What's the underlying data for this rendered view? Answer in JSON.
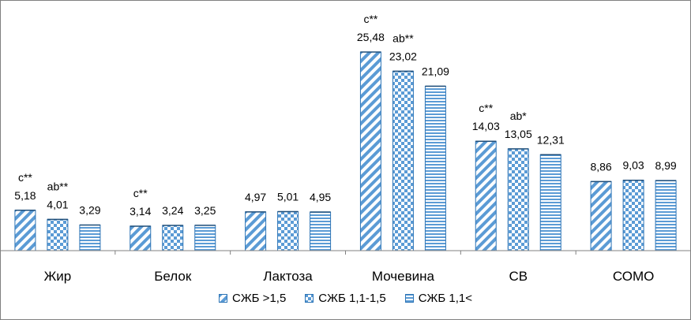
{
  "chart_data": {
    "type": "bar",
    "categories": [
      "Жир",
      "Белок",
      "Лактоза",
      "Мочевина",
      "СВ",
      "СОМО"
    ],
    "series": [
      {
        "name": "СЖБ >1,5",
        "values": [
          5.18,
          3.14,
          4.97,
          25.48,
          14.03,
          8.86
        ],
        "value_labels": [
          "5,18",
          "3,14",
          "4,97",
          "25,48",
          "14,03",
          "8,86"
        ],
        "annotations": [
          "c**",
          "c**",
          "",
          "c**",
          "c**",
          ""
        ]
      },
      {
        "name": "СЖБ 1,1-1,5",
        "values": [
          4.01,
          3.24,
          5.01,
          23.02,
          13.05,
          9.03
        ],
        "value_labels": [
          "4,01",
          "3,24",
          "5,01",
          "23,02",
          "13,05",
          "9,03"
        ],
        "annotations": [
          "ab**",
          "",
          "",
          "ab**",
          "ab*",
          ""
        ]
      },
      {
        "name": "СЖБ 1,1<",
        "values": [
          3.29,
          3.25,
          4.95,
          21.09,
          12.31,
          8.99
        ],
        "value_labels": [
          "3,29",
          "3,25",
          "4,95",
          "21,09",
          "12,31",
          "8,99"
        ],
        "annotations": [
          "",
          "",
          "",
          "",
          "",
          ""
        ]
      }
    ],
    "title": "",
    "xlabel": "",
    "ylabel": "",
    "ylim": [
      0,
      26
    ],
    "grid": false,
    "legend_position": "bottom",
    "colors": {
      "bar_fill": "#5b9bd5",
      "bar_stroke": "#2e75b6",
      "axis": "#808080",
      "text": "#000000"
    },
    "patterns": [
      "diagonal-stripes",
      "checkerboard",
      "horizontal-stripes"
    ]
  }
}
